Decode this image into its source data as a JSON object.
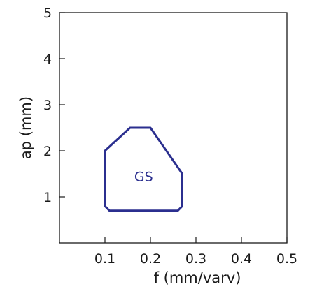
{
  "chart_data": {
    "type": "area",
    "xlabel": "f (mm/varv)",
    "ylabel": "ap (mm)",
    "xlim": [
      0,
      0.5
    ],
    "ylim": [
      0,
      5
    ],
    "x_ticks": [
      0.1,
      0.2,
      0.3,
      0.4,
      0.5
    ],
    "x_tick_labels": [
      "0.1",
      "0.2",
      "0.3",
      "0.4",
      "0.5"
    ],
    "y_ticks": [
      1,
      2,
      3,
      4,
      5
    ],
    "y_tick_labels": [
      "1",
      "2",
      "3",
      "4",
      "5"
    ],
    "grid": false,
    "regions": [
      {
        "label": "GS",
        "label_at": [
          0.185,
          1.45
        ],
        "color": "#2b2f8f",
        "polygon": [
          [
            0.1,
            0.8
          ],
          [
            0.1,
            2.0
          ],
          [
            0.155,
            2.5
          ],
          [
            0.2,
            2.5
          ],
          [
            0.27,
            1.5
          ],
          [
            0.27,
            0.8
          ],
          [
            0.26,
            0.7
          ],
          [
            0.11,
            0.7
          ]
        ]
      }
    ]
  }
}
